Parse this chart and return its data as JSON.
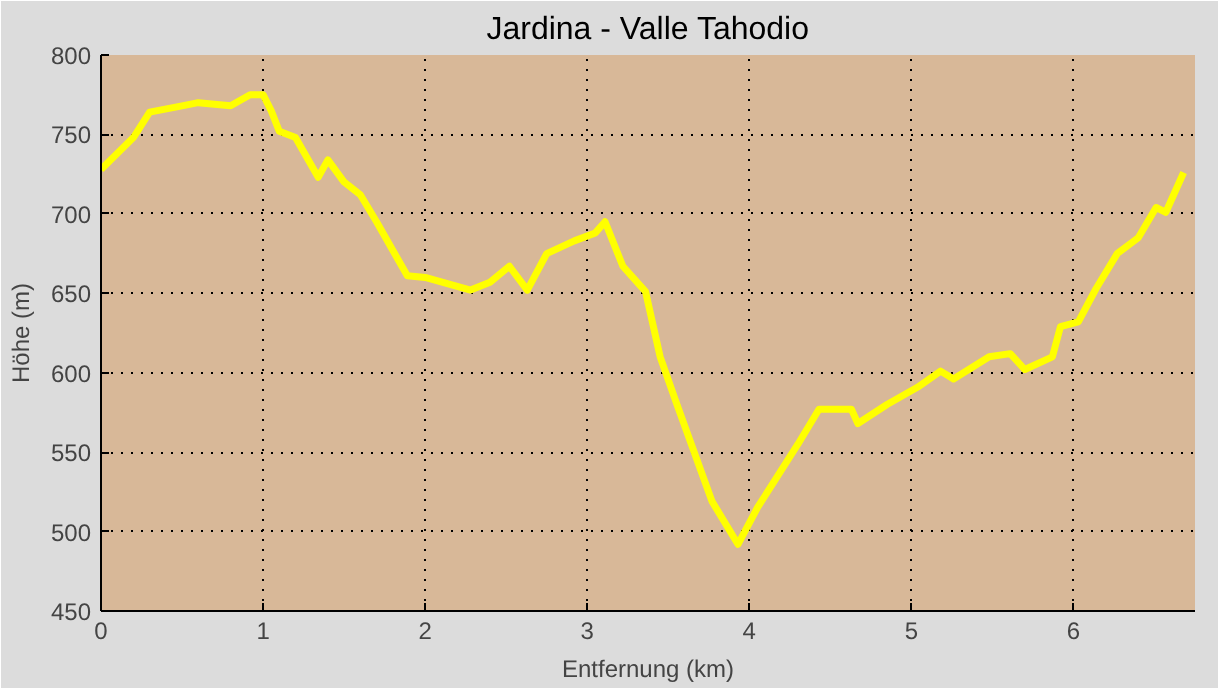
{
  "chart_data": {
    "type": "line",
    "title": "Jardina - Valle Tahodio",
    "xlabel": "Entfernung (km)",
    "ylabel": "Höhe (m)",
    "xlim": [
      0,
      6.75
    ],
    "ylim": [
      450,
      800
    ],
    "xticks": [
      0,
      1,
      2,
      3,
      4,
      5,
      6
    ],
    "yticks": [
      450,
      500,
      550,
      600,
      650,
      700,
      750,
      800
    ],
    "grid": true,
    "line_style": "solid",
    "series": [
      {
        "color": "#ffff00",
        "x": [
          0,
          0.1,
          0.2,
          0.3,
          0.5,
          0.6,
          0.8,
          0.92,
          1.0,
          1.05,
          1.1,
          1.2,
          1.34,
          1.4,
          1.5,
          1.6,
          1.7,
          1.89,
          2.0,
          2.28,
          2.4,
          2.52,
          2.63,
          2.75,
          2.92,
          3.05,
          3.11,
          3.22,
          3.36,
          3.45,
          3.55,
          3.77,
          3.93,
          4.05,
          4.3,
          4.43,
          4.63,
          4.67,
          4.85,
          5.04,
          5.18,
          5.26,
          5.48,
          5.61,
          5.7,
          5.87,
          5.92,
          6.03,
          6.14,
          6.27,
          6.4,
          6.51,
          6.57,
          6.68
        ],
        "values": [
          728,
          738,
          748,
          764,
          768,
          770,
          768,
          775,
          775,
          765,
          752,
          748,
          723,
          734,
          720,
          712,
          695,
          661,
          660,
          652,
          657,
          667,
          652,
          675,
          683,
          688,
          695,
          667,
          651,
          610,
          581,
          519,
          492,
          515,
          555,
          577,
          577,
          568,
          580,
          591,
          601,
          596,
          610,
          612,
          602,
          610,
          629,
          632,
          653,
          675,
          685,
          704,
          701,
          726
        ]
      }
    ]
  }
}
